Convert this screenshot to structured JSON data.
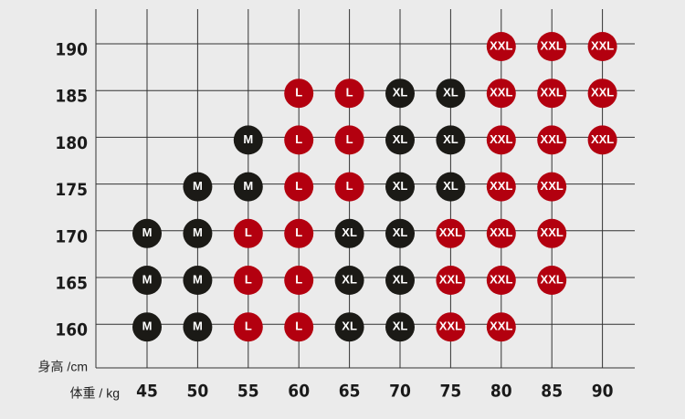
{
  "size_chart": {
    "y_label": "身高 /cm",
    "x_label": "体重 / kg",
    "weights": [
      45,
      50,
      55,
      60,
      65,
      70,
      75,
      80,
      85,
      90
    ],
    "heights": [
      190,
      185,
      180,
      175,
      170,
      165,
      160
    ],
    "colors": {
      "M": "#1b1a16",
      "L": "#b3000f",
      "XL": "#1b1a16",
      "XXL": "#b3000f"
    },
    "sizes": [
      [
        null,
        null,
        null,
        null,
        null,
        null,
        null,
        "XXL",
        "XXL",
        "XXL"
      ],
      [
        null,
        null,
        null,
        "L",
        "L",
        "XL",
        "XL",
        "XXL",
        "XXL",
        "XXL"
      ],
      [
        null,
        null,
        "M",
        "L",
        "L",
        "XL",
        "XL",
        "XXL",
        "XXL",
        "XXL"
      ],
      [
        null,
        "M",
        "M",
        "L",
        "L",
        "XL",
        "XL",
        "XXL",
        "XXL",
        null
      ],
      [
        "M",
        "M",
        "L",
        "L",
        "XL",
        "XL",
        "XXL",
        "XXL",
        "XXL",
        null
      ],
      [
        "M",
        "M",
        "L",
        "L",
        "XL",
        "XL",
        "XXL",
        "XXL",
        "XXL",
        null
      ],
      [
        "M",
        "M",
        "L",
        "L",
        "XL",
        "XL",
        "XXL",
        "XXL",
        null,
        null
      ]
    ]
  }
}
